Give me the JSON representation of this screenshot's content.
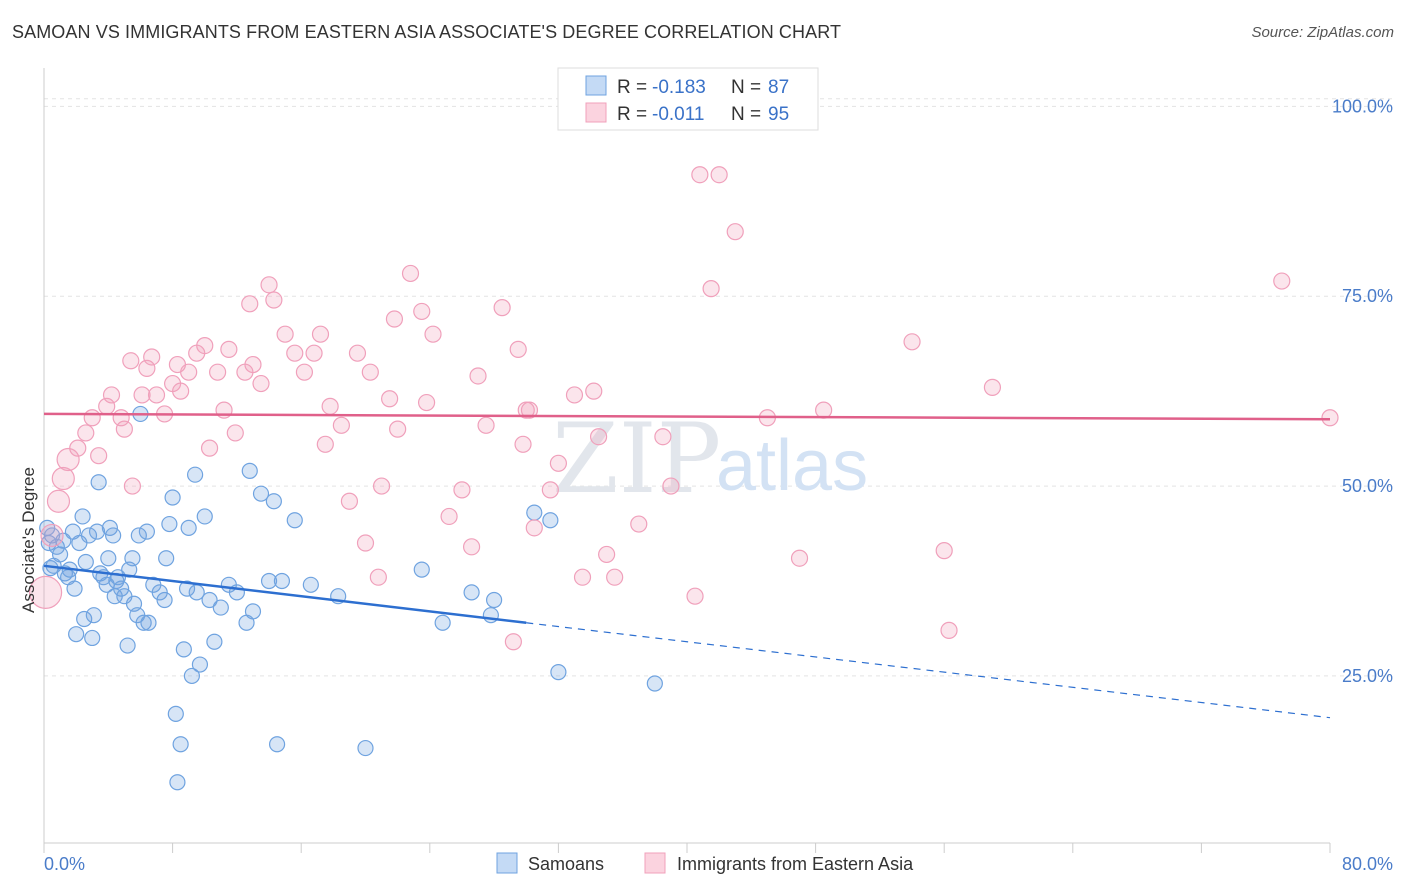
{
  "title": "SAMOAN VS IMMIGRANTS FROM EASTERN ASIA ASSOCIATE'S DEGREE CORRELATION CHART",
  "source": "Source: ZipAtlas.com",
  "colors": {
    "samoans": "#6fa3e0",
    "samoans_line": "#2d6fd0",
    "eastern_asia": "#f0a0bb",
    "eastern_asia_line": "#e0608a",
    "accent": "#4a7cc9"
  },
  "chart_data": {
    "type": "scatter",
    "title": "SAMOAN VS IMMIGRANTS FROM EASTERN ASIA ASSOCIATE'S DEGREE CORRELATION CHART",
    "xlabel": "",
    "ylabel": "Associate's Degree",
    "xlim": [
      0,
      80
    ],
    "ylim": [
      3,
      104
    ],
    "x_tick_labels": [
      "0.0%",
      "80.0%"
    ],
    "y_ticks": [
      25,
      50,
      75,
      100
    ],
    "y_tick_labels": [
      "25.0%",
      "50.0%",
      "75.0%",
      "100.0%"
    ],
    "grid": true,
    "legend_position": "top-center",
    "watermark": [
      "ZIP",
      "atlas"
    ],
    "stats": [
      {
        "series": "Samoans",
        "r_label": "R =",
        "r": "-0.183",
        "n_label": "N =",
        "n": "87"
      },
      {
        "series": "Immigrants from Eastern Asia",
        "r_label": "R =",
        "r": "-0.011",
        "n_label": "N =",
        "n": "95"
      }
    ],
    "series": [
      {
        "name": "Samoans",
        "trend": {
          "x_start": 0,
          "y_start": 39.5,
          "x_solid_end": 30,
          "y_solid_end": 32.0,
          "x_end": 80,
          "y_end": 19.5
        },
        "points": [
          [
            0.2,
            44.5
          ],
          [
            0.3,
            42.5
          ],
          [
            0.4,
            39.2
          ],
          [
            0.5,
            43.5
          ],
          [
            0.6,
            39.5
          ],
          [
            0.8,
            42.0
          ],
          [
            1.0,
            41.0
          ],
          [
            1.2,
            42.8
          ],
          [
            1.3,
            38.5
          ],
          [
            1.5,
            38.0
          ],
          [
            1.6,
            39.0
          ],
          [
            1.8,
            44.0
          ],
          [
            1.9,
            36.5
          ],
          [
            2.0,
            30.5
          ],
          [
            2.2,
            42.5
          ],
          [
            2.4,
            46.0
          ],
          [
            2.5,
            32.5
          ],
          [
            2.6,
            40.0
          ],
          [
            2.8,
            43.5
          ],
          [
            3.0,
            30.0
          ],
          [
            3.1,
            33.0
          ],
          [
            3.3,
            44.0
          ],
          [
            3.4,
            50.5
          ],
          [
            3.5,
            38.5
          ],
          [
            3.7,
            38.0
          ],
          [
            3.9,
            37.0
          ],
          [
            4.0,
            40.5
          ],
          [
            4.1,
            44.5
          ],
          [
            4.3,
            43.5
          ],
          [
            4.4,
            35.5
          ],
          [
            4.5,
            37.5
          ],
          [
            4.6,
            38.0
          ],
          [
            4.8,
            36.5
          ],
          [
            5.0,
            35.5
          ],
          [
            5.2,
            29.0
          ],
          [
            5.3,
            39.0
          ],
          [
            5.5,
            40.5
          ],
          [
            5.6,
            34.5
          ],
          [
            5.8,
            33.0
          ],
          [
            5.9,
            43.5
          ],
          [
            6.0,
            59.5
          ],
          [
            6.2,
            32.0
          ],
          [
            6.4,
            44.0
          ],
          [
            6.5,
            32.0
          ],
          [
            6.8,
            37.0
          ],
          [
            7.2,
            36.0
          ],
          [
            7.5,
            35.0
          ],
          [
            7.6,
            40.5
          ],
          [
            7.8,
            45.0
          ],
          [
            8.0,
            48.5
          ],
          [
            8.2,
            20.0
          ],
          [
            8.3,
            11.0
          ],
          [
            8.5,
            16.0
          ],
          [
            8.7,
            28.5
          ],
          [
            8.9,
            36.5
          ],
          [
            9.0,
            44.5
          ],
          [
            9.2,
            25.0
          ],
          [
            9.4,
            51.5
          ],
          [
            9.5,
            36.0
          ],
          [
            9.7,
            26.5
          ],
          [
            10.0,
            46.0
          ],
          [
            10.3,
            35.0
          ],
          [
            10.6,
            29.5
          ],
          [
            11.0,
            34.0
          ],
          [
            11.5,
            37.0
          ],
          [
            12.0,
            36.0
          ],
          [
            12.6,
            32.0
          ],
          [
            12.8,
            52.0
          ],
          [
            13.0,
            33.5
          ],
          [
            13.5,
            49.0
          ],
          [
            14.0,
            37.5
          ],
          [
            14.3,
            48.0
          ],
          [
            14.5,
            16.0
          ],
          [
            14.8,
            37.5
          ],
          [
            15.6,
            45.5
          ],
          [
            16.6,
            37.0
          ],
          [
            18.3,
            35.5
          ],
          [
            20.0,
            15.5
          ],
          [
            23.5,
            39.0
          ],
          [
            24.8,
            32.0
          ],
          [
            26.6,
            36.0
          ],
          [
            27.8,
            33.0
          ],
          [
            28.0,
            35.0
          ],
          [
            30.5,
            46.5
          ],
          [
            31.5,
            45.5
          ],
          [
            32.0,
            25.5
          ],
          [
            38.0,
            24.0
          ]
        ]
      },
      {
        "name": "Immigrants from Eastern Asia",
        "trend": {
          "x_start": 0,
          "y_start": 59.5,
          "x_end": 80,
          "y_end": 58.8
        },
        "points": [
          [
            0.1,
            36.0
          ],
          [
            0.5,
            43.5
          ],
          [
            0.9,
            48.0
          ],
          [
            1.2,
            51.0
          ],
          [
            1.5,
            53.5
          ],
          [
            2.1,
            55.0
          ],
          [
            2.6,
            57.0
          ],
          [
            3.0,
            59.0
          ],
          [
            3.4,
            54.0
          ],
          [
            3.9,
            60.5
          ],
          [
            4.2,
            62.0
          ],
          [
            4.8,
            59.0
          ],
          [
            5.0,
            57.5
          ],
          [
            5.4,
            66.5
          ],
          [
            5.5,
            50.0
          ],
          [
            6.1,
            62.0
          ],
          [
            6.4,
            65.5
          ],
          [
            6.7,
            67.0
          ],
          [
            7.0,
            62.0
          ],
          [
            7.5,
            59.5
          ],
          [
            8.0,
            63.5
          ],
          [
            8.3,
            66.0
          ],
          [
            8.5,
            62.5
          ],
          [
            9.0,
            65.0
          ],
          [
            9.5,
            67.5
          ],
          [
            10.0,
            68.5
          ],
          [
            10.3,
            55.0
          ],
          [
            10.8,
            65.0
          ],
          [
            11.2,
            60.0
          ],
          [
            11.5,
            68.0
          ],
          [
            11.9,
            57.0
          ],
          [
            12.5,
            65.0
          ],
          [
            12.8,
            74.0
          ],
          [
            13.0,
            66.0
          ],
          [
            13.5,
            63.5
          ],
          [
            14.0,
            76.5
          ],
          [
            14.3,
            74.5
          ],
          [
            15.0,
            70.0
          ],
          [
            15.6,
            67.5
          ],
          [
            16.2,
            65.0
          ],
          [
            16.8,
            67.5
          ],
          [
            17.2,
            70.0
          ],
          [
            17.5,
            55.5
          ],
          [
            17.8,
            60.5
          ],
          [
            18.5,
            58.0
          ],
          [
            19.0,
            48.0
          ],
          [
            19.5,
            67.5
          ],
          [
            20.0,
            42.5
          ],
          [
            20.3,
            65.0
          ],
          [
            20.8,
            38.0
          ],
          [
            21.0,
            50.0
          ],
          [
            21.5,
            61.5
          ],
          [
            21.8,
            72.0
          ],
          [
            22.0,
            57.5
          ],
          [
            22.8,
            78.0
          ],
          [
            23.5,
            73.0
          ],
          [
            23.8,
            61.0
          ],
          [
            24.2,
            70.0
          ],
          [
            25.2,
            46.0
          ],
          [
            26.0,
            49.5
          ],
          [
            26.6,
            42.0
          ],
          [
            27.0,
            64.5
          ],
          [
            27.5,
            58.0
          ],
          [
            28.5,
            73.5
          ],
          [
            29.2,
            29.5
          ],
          [
            29.5,
            68.0
          ],
          [
            29.8,
            55.5
          ],
          [
            30.0,
            60.0
          ],
          [
            30.2,
            60.0
          ],
          [
            30.5,
            44.5
          ],
          [
            31.5,
            49.5
          ],
          [
            32.0,
            53.0
          ],
          [
            33.0,
            62.0
          ],
          [
            33.5,
            38.0
          ],
          [
            34.2,
            62.5
          ],
          [
            34.5,
            56.5
          ],
          [
            35.0,
            41.0
          ],
          [
            35.5,
            38.0
          ],
          [
            37.0,
            45.0
          ],
          [
            38.5,
            56.5
          ],
          [
            39.0,
            50.0
          ],
          [
            40.5,
            35.5
          ],
          [
            40.8,
            91.0
          ],
          [
            41.5,
            76.0
          ],
          [
            42.0,
            91.0
          ],
          [
            43.0,
            83.5
          ],
          [
            45.0,
            59.0
          ],
          [
            47.0,
            40.5
          ],
          [
            48.5,
            60.0
          ],
          [
            54.0,
            69.0
          ],
          [
            56.0,
            41.5
          ],
          [
            56.3,
            31.0
          ],
          [
            59.0,
            63.0
          ],
          [
            77.0,
            77.0
          ],
          [
            80.0,
            59.0
          ]
        ]
      }
    ]
  }
}
